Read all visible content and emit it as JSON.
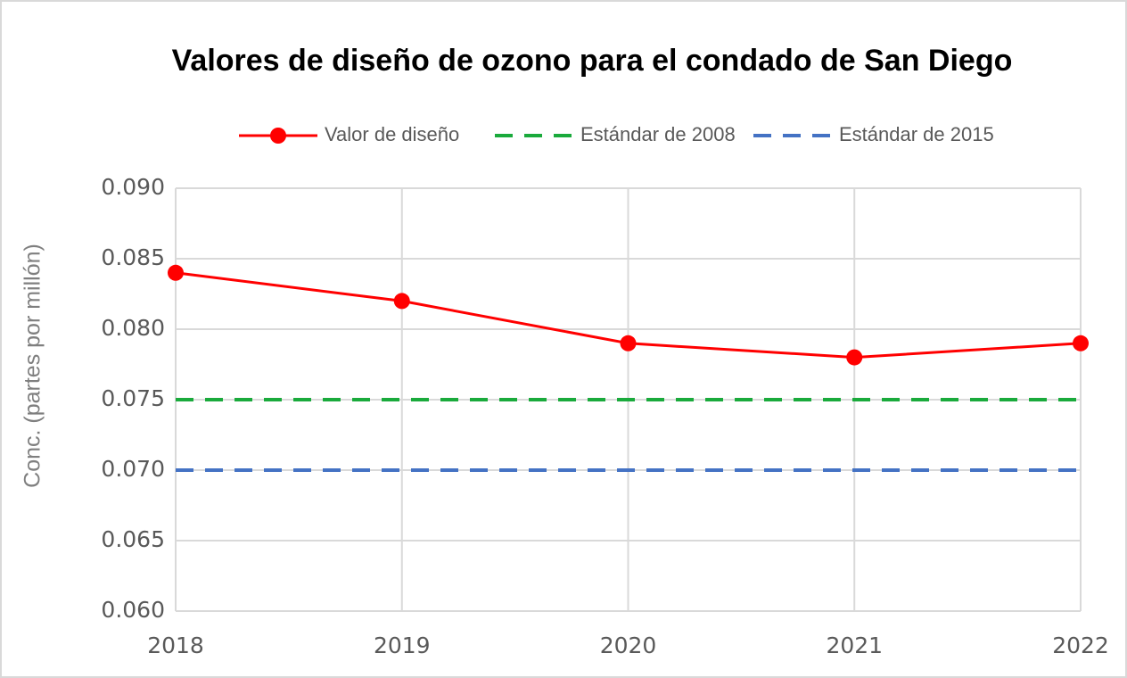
{
  "chart_data": {
    "type": "line",
    "title": "Valores de diseño de ozono para el condado de San Diego",
    "y_label": "Conc. (partes por millón)",
    "x": [
      2018,
      2019,
      2020,
      2021,
      2022
    ],
    "xlim": [
      2018,
      2022
    ],
    "xticks": [
      2018,
      2019,
      2020,
      2021,
      2022
    ],
    "ylim": [
      0.06,
      0.09
    ],
    "yticks": [
      {
        "value": 0.06,
        "label": "0.060"
      },
      0.065,
      {
        "value": 0.07,
        "label": "0.070"
      },
      0.075,
      {
        "value": 0.08,
        "label": "0.080"
      },
      0.085,
      {
        "value": 0.09,
        "label": "0.090"
      }
    ],
    "grid": true,
    "legend": "top",
    "series": [
      {
        "name": "Valor de diseño",
        "color": "#ff0000",
        "style": "solid",
        "marker": true,
        "values": [
          0.084,
          0.082,
          0.079,
          0.078,
          0.079
        ]
      },
      {
        "name": "Estándar de 2008",
        "color": "#1aaa3c",
        "style": "dashed",
        "marker": false,
        "values": [
          0.075,
          0.075,
          0.075,
          0.075,
          0.075
        ]
      },
      {
        "name": "Estándar de 2015",
        "color": "#4472c4",
        "style": "dashed",
        "marker": false,
        "values": [
          0.07,
          0.07,
          0.07,
          0.07,
          0.07
        ]
      }
    ]
  }
}
